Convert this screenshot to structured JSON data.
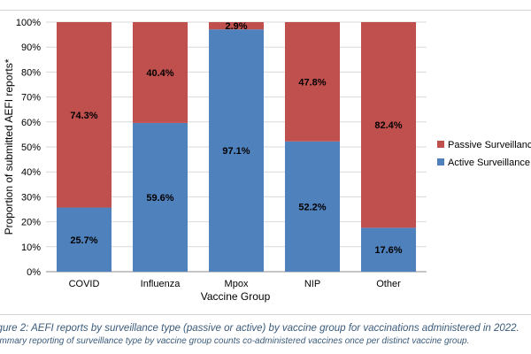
{
  "chart_data": {
    "type": "bar",
    "stacked": true,
    "categories": [
      "COVID",
      "Influenza",
      "Mpox",
      "NIP",
      "Other"
    ],
    "series": [
      {
        "name": "Active Surveillance",
        "color": "#4f81bd",
        "values": [
          25.7,
          59.6,
          97.1,
          52.2,
          17.6
        ],
        "labels": [
          "25.7%",
          "59.6%",
          "97.1%",
          "52.2%",
          "17.6%"
        ]
      },
      {
        "name": "Passive Surveillance",
        "color": "#c0504d",
        "values": [
          74.3,
          40.4,
          2.9,
          47.8,
          82.4
        ],
        "labels": [
          "74.3%",
          "40.4%",
          "2.9%",
          "47.8%",
          "82.4%"
        ]
      }
    ],
    "xlabel": "Vaccine Group",
    "ylabel": "Proportion of submitted AEFI reports*",
    "ylim": [
      0,
      100
    ],
    "yticks": [
      0,
      10,
      20,
      30,
      40,
      50,
      60,
      70,
      80,
      90,
      100
    ],
    "ytick_labels": [
      "0%",
      "10%",
      "20%",
      "30%",
      "40%",
      "50%",
      "60%",
      "70%",
      "80%",
      "90%",
      "100%"
    ],
    "grid": true,
    "legend_position": "right",
    "legend_order": [
      "Passive Surveillance",
      "Active Surveillance"
    ]
  },
  "caption": {
    "line1": "igure 2: AEFI reports by surveillance type (passive or active) by vaccine group for vaccinations administered in 2022.",
    "line2": "ummary reporting of surveillance type by vaccine group counts co-administered vaccines once per distinct vaccine group."
  }
}
